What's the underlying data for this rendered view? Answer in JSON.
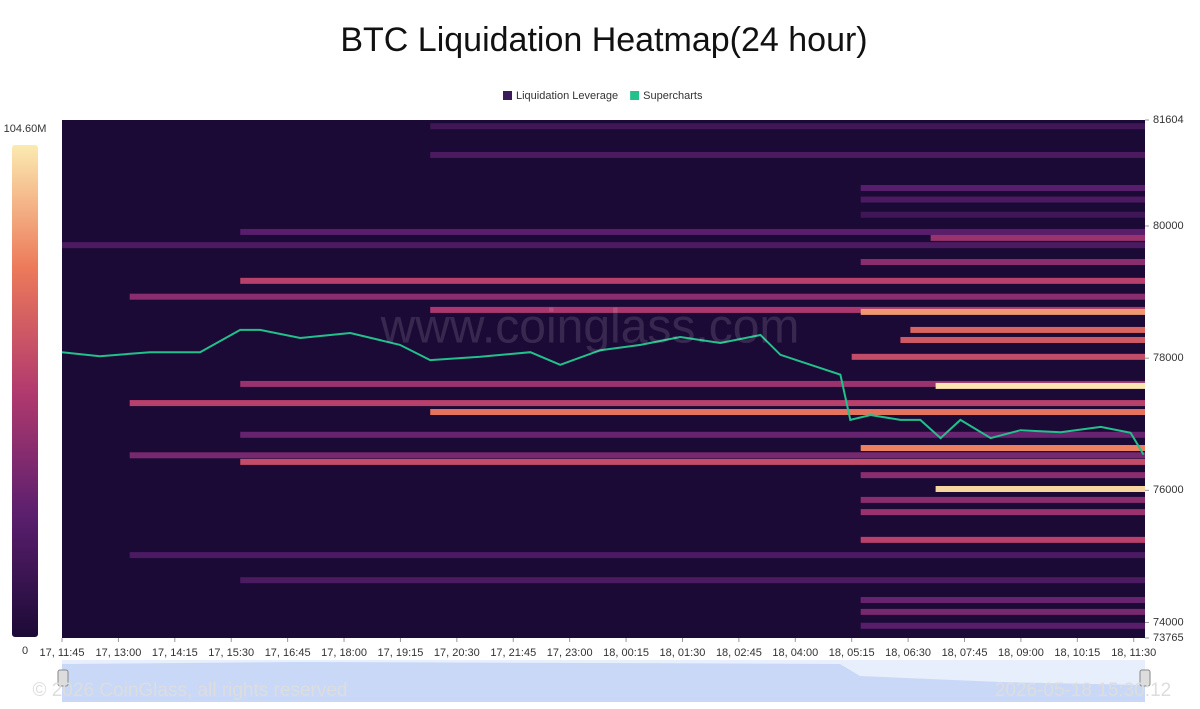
{
  "chart_data": {
    "type": "heatmap",
    "title": "BTC Liquidation Heatmap(24 hour)",
    "series": [
      {
        "name": "Liquidation Leverage",
        "color": "#3b1a5a"
      },
      {
        "name": "Supercharts",
        "color": "#22c08a"
      }
    ],
    "xlim": [
      0,
      24
    ],
    "xticks": [
      {
        "value": 0,
        "label": "17, 11:45"
      },
      {
        "value": 1.25,
        "label": "17, 13:00"
      },
      {
        "value": 2.5,
        "label": "17, 14:15"
      },
      {
        "value": 3.75,
        "label": "17, 15:30"
      },
      {
        "value": 5,
        "label": "17, 16:45"
      },
      {
        "value": 6.25,
        "label": "17, 18:00"
      },
      {
        "value": 7.5,
        "label": "17, 19:15"
      },
      {
        "value": 8.75,
        "label": "17, 20:30"
      },
      {
        "value": 10,
        "label": "17, 21:45"
      },
      {
        "value": 11.25,
        "label": "17, 23:00"
      },
      {
        "value": 12.5,
        "label": "18, 00:15"
      },
      {
        "value": 13.75,
        "label": "18, 01:30"
      },
      {
        "value": 15,
        "label": "18, 02:45"
      },
      {
        "value": 16.25,
        "label": "18, 04:00"
      },
      {
        "value": 17.5,
        "label": "18, 05:15"
      },
      {
        "value": 18.75,
        "label": "18, 06:30"
      },
      {
        "value": 20,
        "label": "18, 07:45"
      },
      {
        "value": 21.25,
        "label": "18, 09:00"
      },
      {
        "value": 22.5,
        "label": "18, 10:15"
      },
      {
        "value": 23.75,
        "label": "18, 11:30"
      }
    ],
    "ylim": [
      73765,
      81604
    ],
    "yticks": [
      73765,
      74000,
      76000,
      78000,
      80000,
      81604
    ],
    "zlim": [
      0,
      104.6
    ],
    "zticks": [
      0,
      {
        "value": 104.6,
        "label": "104.60M"
      }
    ],
    "colorscale": [
      "#1c0a36",
      "#5b1f6e",
      "#b23a6e",
      "#ec7a5a",
      "#fbeab1"
    ],
    "bands": [
      {
        "price": 81510,
        "start": 8.16,
        "value": 15
      },
      {
        "price": 81075,
        "start": 8.16,
        "value": 20
      },
      {
        "price": 80575,
        "start": 17.7,
        "value": 25
      },
      {
        "price": 80400,
        "start": 17.7,
        "value": 20
      },
      {
        "price": 80170,
        "start": 17.7,
        "value": 15
      },
      {
        "price": 79910,
        "start": 3.95,
        "value": 25
      },
      {
        "price": 79820,
        "start": 19.25,
        "value": 45
      },
      {
        "price": 79710,
        "start": 0,
        "value": 20
      },
      {
        "price": 79455,
        "start": 17.7,
        "value": 40
      },
      {
        "price": 79170,
        "start": 3.95,
        "value": 55
      },
      {
        "price": 78930,
        "start": 1.5,
        "value": 40
      },
      {
        "price": 78730,
        "start": 8.16,
        "value": 50
      },
      {
        "price": 78700,
        "start": 17.7,
        "value": 85
      },
      {
        "price": 78427,
        "start": 18.8,
        "value": 70
      },
      {
        "price": 78275,
        "start": 18.58,
        "value": 65
      },
      {
        "price": 78020,
        "start": 17.5,
        "value": 60
      },
      {
        "price": 77610,
        "start": 3.95,
        "value": 45
      },
      {
        "price": 77580,
        "start": 19.36,
        "value": 104
      },
      {
        "price": 77320,
        "start": 1.5,
        "value": 55
      },
      {
        "price": 77185,
        "start": 8.16,
        "value": 75
      },
      {
        "price": 76840,
        "start": 3.95,
        "value": 30
      },
      {
        "price": 76640,
        "start": 17.7,
        "value": 80
      },
      {
        "price": 76530,
        "start": 1.5,
        "value": 35
      },
      {
        "price": 76430,
        "start": 3.95,
        "value": 60
      },
      {
        "price": 76230,
        "start": 17.7,
        "value": 40
      },
      {
        "price": 76020,
        "start": 19.36,
        "value": 100
      },
      {
        "price": 75855,
        "start": 17.7,
        "value": 40
      },
      {
        "price": 75670,
        "start": 17.7,
        "value": 45
      },
      {
        "price": 75250,
        "start": 17.7,
        "value": 55
      },
      {
        "price": 75020,
        "start": 1.5,
        "value": 20
      },
      {
        "price": 74640,
        "start": 3.95,
        "value": 20
      },
      {
        "price": 74340,
        "start": 17.7,
        "value": 30
      },
      {
        "price": 74160,
        "start": 17.7,
        "value": 35
      },
      {
        "price": 73950,
        "start": 17.7,
        "value": 25
      }
    ],
    "price": {
      "x": [
        0,
        0.84,
        1.95,
        3.06,
        3.95,
        4.39,
        5.28,
        6.39,
        7.49,
        8.16,
        9.27,
        10.38,
        11.04,
        11.93,
        12.82,
        13.7,
        14.59,
        15.48,
        15.92,
        16.59,
        17.25,
        17.47,
        17.92,
        18.58,
        19.02,
        19.47,
        19.91,
        20.58,
        21.24,
        22.13,
        23.02,
        23.68,
        23.97
      ],
      "values": [
        78090,
        78030,
        78090,
        78090,
        78427,
        78427,
        78305,
        78380,
        78200,
        77970,
        78020,
        78090,
        77900,
        78120,
        78200,
        78320,
        78230,
        78350,
        78050,
        77900,
        77750,
        77065,
        77140,
        77065,
        77065,
        76790,
        77065,
        76790,
        76910,
        76880,
        76960,
        76870,
        76540
      ]
    }
  },
  "watermark": "www.coinglass.com",
  "footer": {
    "copyright": "© 2026 CoinGlass, all rights reserved",
    "timestamp": "2026-05-18 15:30:12"
  }
}
